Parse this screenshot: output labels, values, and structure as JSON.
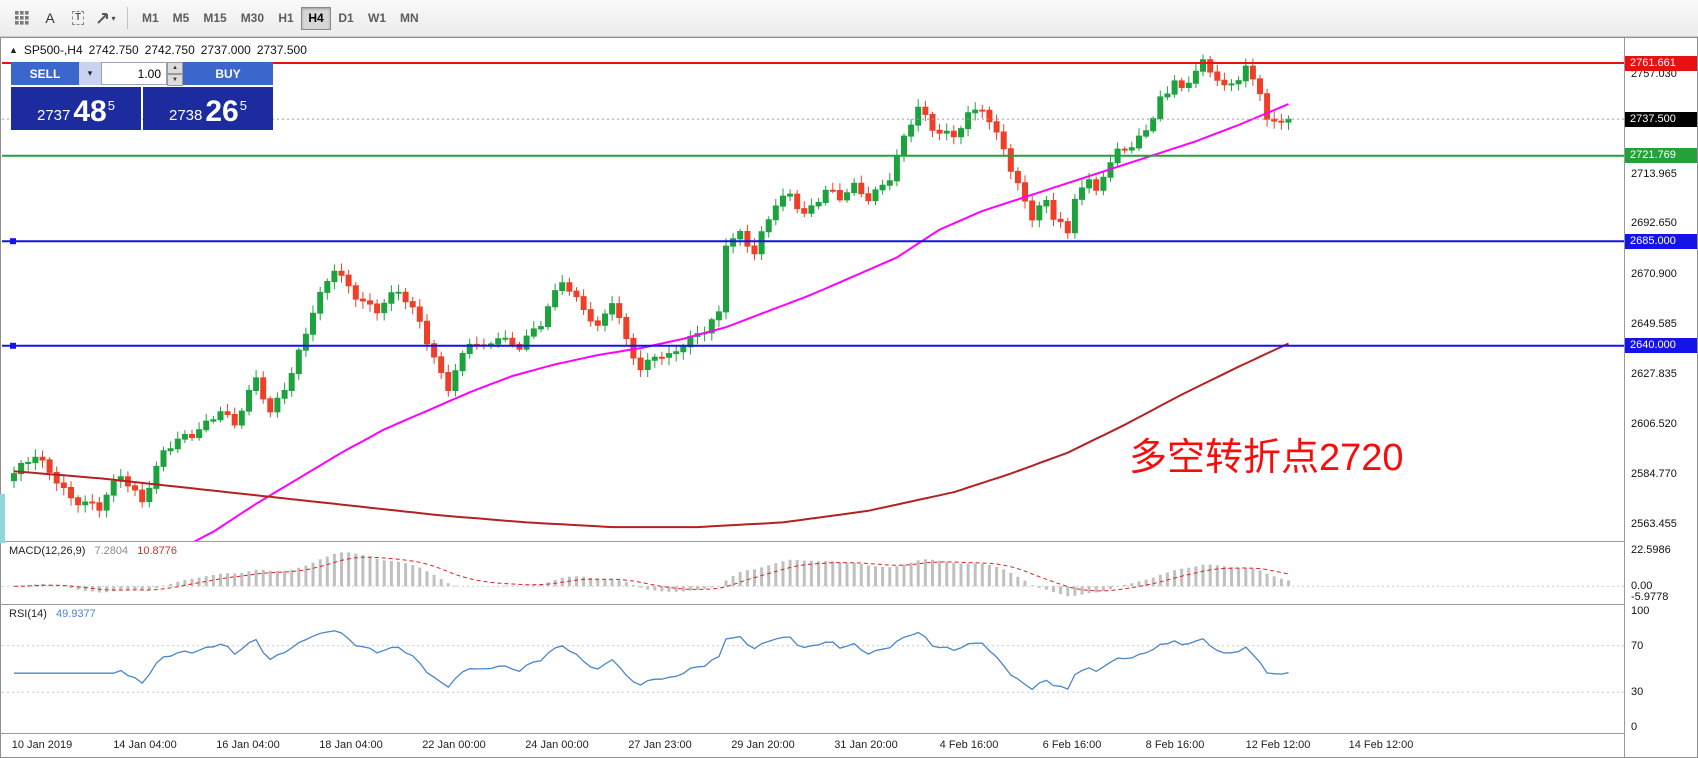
{
  "toolbar": {
    "tools": [
      {
        "name": "grid-tool",
        "type": "grid"
      },
      {
        "name": "insert-text-tool",
        "type": "letter",
        "label": "A"
      },
      {
        "name": "text-label-tool",
        "type": "boxed-letter",
        "label": "T"
      },
      {
        "name": "arrows-tool",
        "type": "arrow",
        "caret": "▾"
      }
    ],
    "timeframes": [
      {
        "label": "M1",
        "active": false
      },
      {
        "label": "M5",
        "active": false
      },
      {
        "label": "M15",
        "active": false
      },
      {
        "label": "M30",
        "active": false
      },
      {
        "label": "H1",
        "active": false
      },
      {
        "label": "H4",
        "active": true
      },
      {
        "label": "D1",
        "active": false
      },
      {
        "label": "W1",
        "active": false
      },
      {
        "label": "MN",
        "active": false
      }
    ]
  },
  "header": {
    "collapse_arrow": "▲",
    "symbol_period": "SP500-,H4",
    "open": "2742.750",
    "high": "2742.750",
    "low": "2737.000",
    "close": "2737.500"
  },
  "trade_panel": {
    "sell_label": "SELL",
    "buy_label": "BUY",
    "volume": "1.00",
    "caret": "▾",
    "spin_up": "▲",
    "spin_down": "▼",
    "sell_price": {
      "main": "2737",
      "pips": "48",
      "sup": "5"
    },
    "buy_price": {
      "main": "2738",
      "pips": "26",
      "sup": "5"
    }
  },
  "annotation": {
    "text": "多空转折点2720",
    "color": "#f60d0d"
  },
  "price_axis": {
    "ticks": [
      {
        "label": "2757.030",
        "price": 2757.03
      },
      {
        "label": "2713.965",
        "price": 2713.965
      },
      {
        "label": "2692.650",
        "price": 2692.65
      },
      {
        "label": "2670.900",
        "price": 2670.9
      },
      {
        "label": "2649.585",
        "price": 2649.585
      },
      {
        "label": "2627.835",
        "price": 2627.835
      },
      {
        "label": "2606.520",
        "price": 2606.52
      },
      {
        "label": "2584.770",
        "price": 2584.77
      },
      {
        "label": "2563.455",
        "price": 2563.455
      }
    ],
    "tags": [
      {
        "label": "2761.661",
        "price": 2761.661,
        "bg": "#e81010",
        "name": "resistance-tag"
      },
      {
        "label": "2737.500",
        "price": 2737.5,
        "bg": "#000000",
        "name": "bid-price-tag"
      },
      {
        "label": "2721.769",
        "price": 2721.769,
        "bg": "#23a23c",
        "name": "pivot-tag"
      },
      {
        "label": "2685.000",
        "price": 2685.0,
        "bg": "#1414e8",
        "name": "support1-tag"
      },
      {
        "label": "2640.000",
        "price": 2640.0,
        "bg": "#1414e8",
        "name": "support2-tag"
      }
    ]
  },
  "macd_panel": {
    "title": "MACD(12,26,9)",
    "main_value": "7.2804",
    "signal_value": "10.8776",
    "axis_labels": [
      {
        "label": "22.5986",
        "value": 22.5986
      },
      {
        "label": "0.00",
        "value": 0
      },
      {
        "label": "-5.9778",
        "value": -5.9778
      }
    ],
    "range": [
      -10,
      25
    ],
    "histogram_color": "#c0c0c0",
    "signal_color": "#e02020"
  },
  "rsi_panel": {
    "title": "RSI(14)",
    "value": "49.9377",
    "axis_labels": [
      {
        "label": "100",
        "value": 100
      },
      {
        "label": "70",
        "value": 70
      },
      {
        "label": "30",
        "value": 30
      },
      {
        "label": "0",
        "value": 0
      }
    ],
    "levels": [
      70,
      30
    ],
    "range": [
      0,
      100
    ],
    "line_color": "#4a86c8"
  },
  "time_axis": {
    "labels": [
      "10 Jan 2019",
      "14 Jan 04:00",
      "16 Jan 04:00",
      "18 Jan 04:00",
      "22 Jan 00:00",
      "24 Jan 00:00",
      "27 Jan 23:00",
      "29 Jan 20:00",
      "31 Jan 20:00",
      "4 Feb 16:00",
      "6 Feb 16:00",
      "8 Feb 16:00",
      "12 Feb 12:00",
      "14 Feb 12:00"
    ]
  },
  "chart_data": {
    "type": "candlestick",
    "symbol": "SP500-",
    "timeframe": "H4",
    "visible_range": {
      "start": "10 Jan 2019",
      "end": "14 Feb 2019"
    },
    "price_range": [
      2556,
      2772
    ],
    "n_candles": 180,
    "up_color": "#1da33e",
    "down_color": "#ee3f28",
    "last_close": 2737.5,
    "close_keypoints": [
      [
        0,
        2585
      ],
      [
        3,
        2591
      ],
      [
        6,
        2583
      ],
      [
        8,
        2576
      ],
      [
        12,
        2569
      ],
      [
        15,
        2584
      ],
      [
        18,
        2575
      ],
      [
        21,
        2594
      ],
      [
        25,
        2601
      ],
      [
        29,
        2614
      ],
      [
        31,
        2606
      ],
      [
        34,
        2624
      ],
      [
        36,
        2611
      ],
      [
        39,
        2630
      ],
      [
        42,
        2654
      ],
      [
        45,
        2672
      ],
      [
        48,
        2663
      ],
      [
        51,
        2656
      ],
      [
        54,
        2662
      ],
      [
        57,
        2651
      ],
      [
        59,
        2636
      ],
      [
        61,
        2623
      ],
      [
        64,
        2640
      ],
      [
        66,
        2638
      ],
      [
        68,
        2645
      ],
      [
        71,
        2641
      ],
      [
        74,
        2648
      ],
      [
        77,
        2668
      ],
      [
        80,
        2658
      ],
      [
        82,
        2648
      ],
      [
        84,
        2658
      ],
      [
        86,
        2641
      ],
      [
        88,
        2630
      ],
      [
        90,
        2638
      ],
      [
        92,
        2636
      ],
      [
        95,
        2641
      ],
      [
        97,
        2646
      ],
      [
        99,
        2655
      ],
      [
        100,
        2686
      ],
      [
        102,
        2689
      ],
      [
        104,
        2679
      ],
      [
        107,
        2700
      ],
      [
        109,
        2706
      ],
      [
        111,
        2698
      ],
      [
        114,
        2706
      ],
      [
        116,
        2702
      ],
      [
        118,
        2708
      ],
      [
        120,
        2705
      ],
      [
        123,
        2713
      ],
      [
        125,
        2728
      ],
      [
        127,
        2741
      ],
      [
        129,
        2734
      ],
      [
        132,
        2732
      ],
      [
        134,
        2739
      ],
      [
        136,
        2741
      ],
      [
        137,
        2734
      ],
      [
        139,
        2726
      ],
      [
        140,
        2716
      ],
      [
        142,
        2705
      ],
      [
        143,
        2696
      ],
      [
        145,
        2702
      ],
      [
        146,
        2694
      ],
      [
        148,
        2687
      ],
      [
        149,
        2704
      ],
      [
        151,
        2712
      ],
      [
        152,
        2710
      ],
      [
        154,
        2718
      ],
      [
        155,
        2725
      ],
      [
        157,
        2722
      ],
      [
        158,
        2729
      ],
      [
        160,
        2737
      ],
      [
        161,
        2748
      ],
      [
        163,
        2755
      ],
      [
        164,
        2751
      ],
      [
        166,
        2757
      ],
      [
        167,
        2760
      ],
      [
        169,
        2754
      ],
      [
        170,
        2751
      ],
      [
        172,
        2757
      ],
      [
        173,
        2761
      ],
      [
        175,
        2750
      ],
      [
        176,
        2736
      ],
      [
        177,
        2734
      ],
      [
        179,
        2737.5
      ]
    ],
    "horizontal_lines": [
      {
        "name": "resistance-line",
        "price": 2761.661,
        "color": "#e81010",
        "width": 2,
        "handle": false
      },
      {
        "name": "pivot-line",
        "price": 2721.769,
        "color": "#23a23c",
        "width": 2,
        "handle": false
      },
      {
        "name": "support-line-1",
        "price": 2685.0,
        "color": "#1414e8",
        "width": 2,
        "handle": true
      },
      {
        "name": "support-line-2",
        "price": 2640.0,
        "color": "#1414e8",
        "width": 2,
        "handle": true
      }
    ],
    "bid_line": {
      "price": 2737.5,
      "color": "#9a9a9a"
    },
    "ma_fast": {
      "color": "#ff00ff",
      "width": 2,
      "points": [
        [
          23,
          2552
        ],
        [
          28,
          2560
        ],
        [
          34,
          2572
        ],
        [
          40,
          2583
        ],
        [
          46,
          2594
        ],
        [
          52,
          2604
        ],
        [
          58,
          2612
        ],
        [
          64,
          2620
        ],
        [
          70,
          2627
        ],
        [
          76,
          2632
        ],
        [
          82,
          2636
        ],
        [
          88,
          2639
        ],
        [
          94,
          2643
        ],
        [
          100,
          2648
        ],
        [
          106,
          2655
        ],
        [
          112,
          2662
        ],
        [
          118,
          2670
        ],
        [
          124,
          2678
        ],
        [
          130,
          2690
        ],
        [
          136,
          2698
        ],
        [
          142,
          2704
        ],
        [
          148,
          2710
        ],
        [
          154,
          2716
        ],
        [
          160,
          2722
        ],
        [
          166,
          2728
        ],
        [
          172,
          2735
        ],
        [
          179,
          2744
        ]
      ]
    },
    "ma_slow": {
      "color": "#b22222",
      "width": 2,
      "points": [
        [
          0,
          2586
        ],
        [
          12,
          2583
        ],
        [
          24,
          2579
        ],
        [
          36,
          2575
        ],
        [
          48,
          2571
        ],
        [
          60,
          2567
        ],
        [
          72,
          2564
        ],
        [
          84,
          2562
        ],
        [
          96,
          2562
        ],
        [
          108,
          2564
        ],
        [
          120,
          2569
        ],
        [
          132,
          2577
        ],
        [
          140,
          2585
        ],
        [
          148,
          2594
        ],
        [
          156,
          2606
        ],
        [
          164,
          2619
        ],
        [
          172,
          2631
        ],
        [
          179,
          2641
        ]
      ]
    }
  }
}
